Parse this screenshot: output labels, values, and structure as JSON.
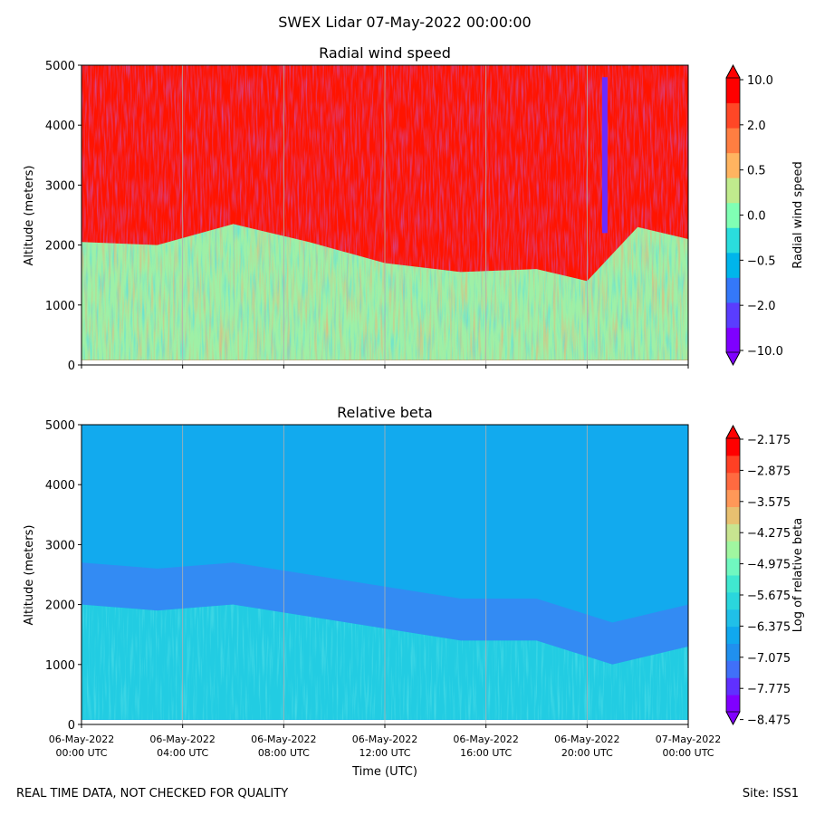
{
  "figure": {
    "title": "SWEX Lidar 07-May-2022 00:00:00",
    "footer_left": "REAL TIME DATA, NOT CHECKED FOR QUALITY",
    "footer_right": "Site: ISS1"
  },
  "chart_data": [
    {
      "type": "heatmap",
      "title": "Radial wind speed",
      "xlabel": "",
      "ylabel": "Altitude (meters)",
      "ylim": [
        0,
        5000
      ],
      "yticks": [
        "0",
        "1000",
        "2000",
        "3000",
        "4000",
        "5000"
      ],
      "xticks_hours": [
        0,
        4,
        8,
        12,
        16,
        20,
        24
      ],
      "show_x_ticklabels": false,
      "colorbar": {
        "label": "Radial wind speed",
        "ticks": [
          "10.0",
          "2.0",
          "0.5",
          "0.0",
          "-0.5",
          "-2.0",
          "-10.0"
        ],
        "extend": "both"
      },
      "features": {
        "red_region_lower_edge_m_by_hour": [
          [
            0,
            2050
          ],
          [
            3,
            2000
          ],
          [
            6,
            2350
          ],
          [
            9,
            2050
          ],
          [
            12,
            1700
          ],
          [
            15,
            1550
          ],
          [
            18,
            1600
          ],
          [
            20,
            1400
          ],
          [
            22,
            2300
          ],
          [
            24,
            2100
          ]
        ],
        "purple_streak_hour": 20.7,
        "purple_streak_altitude_m": [
          2200,
          4800
        ]
      }
    },
    {
      "type": "heatmap",
      "title": "Relative beta",
      "xlabel": "Time (UTC)",
      "ylabel": "Altitude (meters)",
      "ylim": [
        0,
        5000
      ],
      "yticks": [
        "0",
        "1000",
        "2000",
        "3000",
        "4000",
        "5000"
      ],
      "xticks_hours": [
        0,
        4,
        8,
        12,
        16,
        20,
        24
      ],
      "xtick_labels": [
        [
          "06-May-2022",
          "00:00 UTC"
        ],
        [
          "06-May-2022",
          "04:00 UTC"
        ],
        [
          "06-May-2022",
          "08:00 UTC"
        ],
        [
          "06-May-2022",
          "12:00 UTC"
        ],
        [
          "06-May-2022",
          "16:00 UTC"
        ],
        [
          "06-May-2022",
          "20:00 UTC"
        ],
        [
          "07-May-2022",
          "00:00 UTC"
        ]
      ],
      "colorbar": {
        "label": "Log of relative beta",
        "ticks": [
          "-2.175",
          "-2.875",
          "-3.575",
          "-4.275",
          "-4.975",
          "-5.675",
          "-6.375",
          "-7.075",
          "-7.775",
          "-8.475"
        ],
        "extend": "both"
      },
      "features": {
        "boundary_layer_top_m_by_hour": [
          [
            0,
            2000
          ],
          [
            3,
            1900
          ],
          [
            6,
            2000
          ],
          [
            9,
            1800
          ],
          [
            12,
            1600
          ],
          [
            15,
            1400
          ],
          [
            18,
            1400
          ],
          [
            21,
            1000
          ],
          [
            24,
            1300
          ]
        ]
      }
    }
  ],
  "colors": {
    "wind_scale": [
      "#7f00ff",
      "#5a3dfe",
      "#3478f9",
      "#00b5eb",
      "#2adddd",
      "#80ffb4",
      "#c0eb8d",
      "#ffb460",
      "#ff7e41",
      "#ff4726",
      "#ff0000"
    ],
    "beta_scale": [
      "#8000ff",
      "#6030fe",
      "#4070f8",
      "#2090ee",
      "#10a8ee",
      "#20c0e8",
      "#2ad6dd",
      "#40e8d0",
      "#70f8c0",
      "#a0f6a0",
      "#c8e490",
      "#e8c070",
      "#ff9858",
      "#ff6a40",
      "#ff4024",
      "#ff0000"
    ],
    "grid": "#b0b0b0"
  }
}
